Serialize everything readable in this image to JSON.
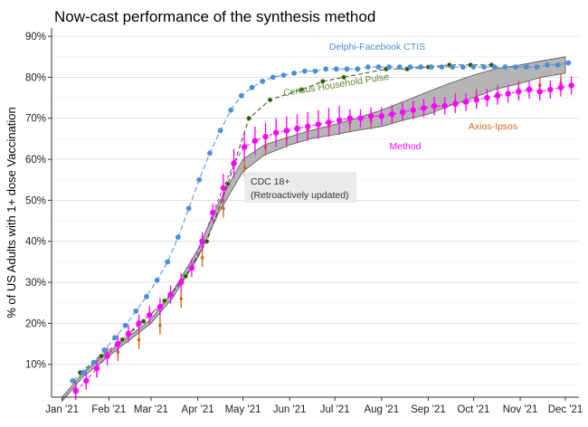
{
  "chart_data": {
    "type": "line",
    "title": "Now-cast performance of the synthesis method",
    "xlabel": "",
    "ylabel": "% of US Adults with 1+ dose Vaccination",
    "x_ticks": [
      "Jan '21",
      "Feb '21",
      "Mar '21",
      "Apr '21",
      "May '21",
      "Jun '21",
      "Jul '21",
      "Aug '21",
      "Sep '21",
      "Oct '21",
      "Nov '21",
      "Dec '21"
    ],
    "y_ticks": [
      "10%",
      "20%",
      "30%",
      "40%",
      "50%",
      "60%",
      "70%",
      "80%",
      "90%"
    ],
    "ylim": [
      2,
      92
    ],
    "xlim": [
      "2020-12-25",
      "2021-12-10"
    ],
    "grid": true,
    "legend": "none (inline labels)",
    "annotation": {
      "label": "CDC 18+",
      "sublabel": "(Retroactively updated)"
    },
    "series": [
      {
        "name": "Delphi-Facebook CTIS",
        "color": "#4a90d9",
        "style": "dashed line with points",
        "x": [
          "2021-01-08",
          "2021-01-15",
          "2021-01-22",
          "2021-01-29",
          "2021-02-05",
          "2021-02-12",
          "2021-02-19",
          "2021-02-26",
          "2021-03-05",
          "2021-03-12",
          "2021-03-19",
          "2021-03-26",
          "2021-04-02",
          "2021-04-09",
          "2021-04-16",
          "2021-04-23",
          "2021-04-30",
          "2021-05-07",
          "2021-05-14",
          "2021-05-21",
          "2021-05-28",
          "2021-06-04",
          "2021-06-11",
          "2021-06-18",
          "2021-06-25",
          "2021-07-02",
          "2021-07-09",
          "2021-07-16",
          "2021-07-23",
          "2021-07-30",
          "2021-08-06",
          "2021-08-13",
          "2021-08-20",
          "2021-08-27",
          "2021-09-03",
          "2021-09-10",
          "2021-09-17",
          "2021-09-24",
          "2021-10-01",
          "2021-10-08",
          "2021-10-15",
          "2021-10-22",
          "2021-10-29",
          "2021-11-05",
          "2021-11-12",
          "2021-11-19",
          "2021-11-26",
          "2021-12-03"
        ],
        "y": [
          6,
          8,
          10.5,
          13.5,
          16.5,
          19.5,
          23,
          26.5,
          30.5,
          35,
          41,
          48,
          55,
          61.5,
          67,
          72,
          75.5,
          77.5,
          79,
          80,
          80.5,
          81,
          81.5,
          81.5,
          82,
          82,
          82,
          82,
          82.5,
          82.5,
          82.5,
          82.5,
          82.5,
          82.5,
          82.5,
          82.5,
          82.5,
          82.5,
          82.5,
          82.5,
          82.5,
          82.5,
          82.5,
          82.5,
          82.5,
          83,
          83,
          83.5
        ]
      },
      {
        "name": "Census Household Pulse",
        "color": "#5a8a2f",
        "style": "dashed line with points",
        "x": [
          "2021-01-13",
          "2021-01-27",
          "2021-02-10",
          "2021-02-24",
          "2021-03-10",
          "2021-03-24",
          "2021-04-07",
          "2021-04-21",
          "2021-05-05",
          "2021-05-19",
          "2021-06-09",
          "2021-06-23",
          "2021-07-07",
          "2021-08-04",
          "2021-08-18",
          "2021-09-01",
          "2021-09-15",
          "2021-09-29",
          "2021-10-13"
        ],
        "y": [
          8,
          12,
          16,
          20.5,
          25.5,
          31.5,
          40,
          54,
          70,
          74.5,
          77,
          79,
          80,
          82,
          82,
          82.5,
          83,
          83,
          83
        ]
      },
      {
        "name": "Axios-Ipsos",
        "color": "#d2691e",
        "style": "error bars",
        "x": [
          "2021-01-10",
          "2021-01-24",
          "2021-02-07",
          "2021-02-21",
          "2021-03-07",
          "2021-03-21",
          "2021-04-04",
          "2021-04-18",
          "2021-05-02",
          "2021-05-16",
          "2021-05-30",
          "2021-06-13",
          "2021-06-27",
          "2021-07-11",
          "2021-07-25",
          "2021-08-08",
          "2021-08-22",
          "2021-09-05",
          "2021-09-19",
          "2021-10-03",
          "2021-10-17",
          "2021-10-31",
          "2021-11-14",
          "2021-11-28"
        ],
        "y": [
          4,
          9,
          13,
          16,
          19.5,
          26,
          36,
          48,
          58,
          63,
          65,
          67,
          68,
          69,
          69.5,
          71,
          72,
          73,
          74,
          75,
          76,
          77,
          78,
          78.5
        ]
      },
      {
        "name": "Method",
        "color": "#ff00ff",
        "style": "points with error bars",
        "x": [
          "2021-01-10",
          "2021-01-17",
          "2021-01-24",
          "2021-01-31",
          "2021-02-07",
          "2021-02-14",
          "2021-02-21",
          "2021-02-28",
          "2021-03-07",
          "2021-03-14",
          "2021-03-21",
          "2021-03-28",
          "2021-04-04",
          "2021-04-11",
          "2021-04-18",
          "2021-04-25",
          "2021-05-02",
          "2021-05-09",
          "2021-05-16",
          "2021-05-23",
          "2021-05-30",
          "2021-06-06",
          "2021-06-13",
          "2021-06-20",
          "2021-06-27",
          "2021-07-04",
          "2021-07-11",
          "2021-07-18",
          "2021-07-25",
          "2021-08-01",
          "2021-08-08",
          "2021-08-15",
          "2021-08-22",
          "2021-08-29",
          "2021-09-05",
          "2021-09-12",
          "2021-09-19",
          "2021-09-26",
          "2021-10-03",
          "2021-10-10",
          "2021-10-17",
          "2021-10-24",
          "2021-10-31",
          "2021-11-07",
          "2021-11-14",
          "2021-11-21",
          "2021-11-28",
          "2021-12-05"
        ],
        "y": [
          3.5,
          6,
          9,
          12,
          15,
          17.5,
          20,
          22,
          24,
          27,
          30,
          33.5,
          40,
          47,
          53,
          59,
          63,
          64.5,
          65.5,
          66.5,
          67,
          67.5,
          68,
          68.5,
          69,
          69.5,
          70,
          70,
          70.5,
          70.5,
          71,
          71.5,
          72,
          72.5,
          73,
          73,
          73.5,
          74,
          74.5,
          75,
          75.5,
          76,
          76.5,
          77,
          76.5,
          77,
          77.5,
          78
        ]
      },
      {
        "name": "CDC 18+",
        "color": "#8c8c8c",
        "style": "band",
        "x": [
          "2021-01-01",
          "2021-01-15",
          "2021-02-01",
          "2021-02-15",
          "2021-03-01",
          "2021-03-15",
          "2021-04-01",
          "2021-04-15",
          "2021-05-01",
          "2021-05-15",
          "2021-06-01",
          "2021-06-15",
          "2021-07-01",
          "2021-07-15",
          "2021-08-01",
          "2021-08-15",
          "2021-09-01",
          "2021-09-15",
          "2021-10-01",
          "2021-10-15",
          "2021-11-01",
          "2021-11-15",
          "2021-12-01"
        ],
        "lower": [
          1,
          7,
          12,
          16,
          20,
          26,
          36,
          47,
          57,
          61,
          63.5,
          65,
          66,
          67,
          68,
          69.5,
          71,
          73,
          75,
          77,
          78.5,
          80,
          81
        ],
        "upper": [
          2,
          8,
          13,
          17,
          21,
          27.5,
          38,
          49.5,
          60,
          63.5,
          65.5,
          67,
          68.5,
          70,
          72,
          74,
          76.5,
          78.5,
          80.5,
          82,
          83,
          84,
          85
        ]
      }
    ]
  }
}
